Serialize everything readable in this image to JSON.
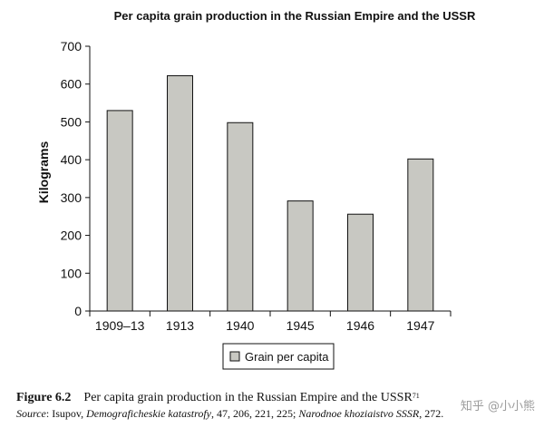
{
  "chart_data": {
    "type": "bar",
    "title": "Per capita grain production in the Russian Empire and the USSR",
    "xlabel": "",
    "ylabel": "Kilograms",
    "categories": [
      "1909–13",
      "1913",
      "1940",
      "1945",
      "1946",
      "1947"
    ],
    "series": [
      {
        "name": "Grain per capita",
        "values": [
          530,
          622,
          498,
          291,
          256,
          402
        ]
      }
    ],
    "ylim": [
      0,
      700
    ],
    "yticks": [
      0,
      100,
      200,
      300,
      400,
      500,
      600,
      700
    ],
    "grid": false,
    "legend": "bottom",
    "bar_color": "#c8c8c2",
    "bar_stroke": "#111111"
  },
  "caption": {
    "figure_number": "Figure 6.2",
    "figure_title": "Per capita grain production in the Russian Empire and the USSR",
    "note_ref": "71",
    "source_prefix": "Source",
    "source_sep": ": Isupov, ",
    "source_work1": "Demograficheskie katastrofy",
    "source_mid": ", 47, 206, 221, 225; ",
    "source_work2": "Narodnoe khoziaistvo SSSR",
    "source_end": ", 272."
  },
  "watermark": "知乎 @小小熊"
}
